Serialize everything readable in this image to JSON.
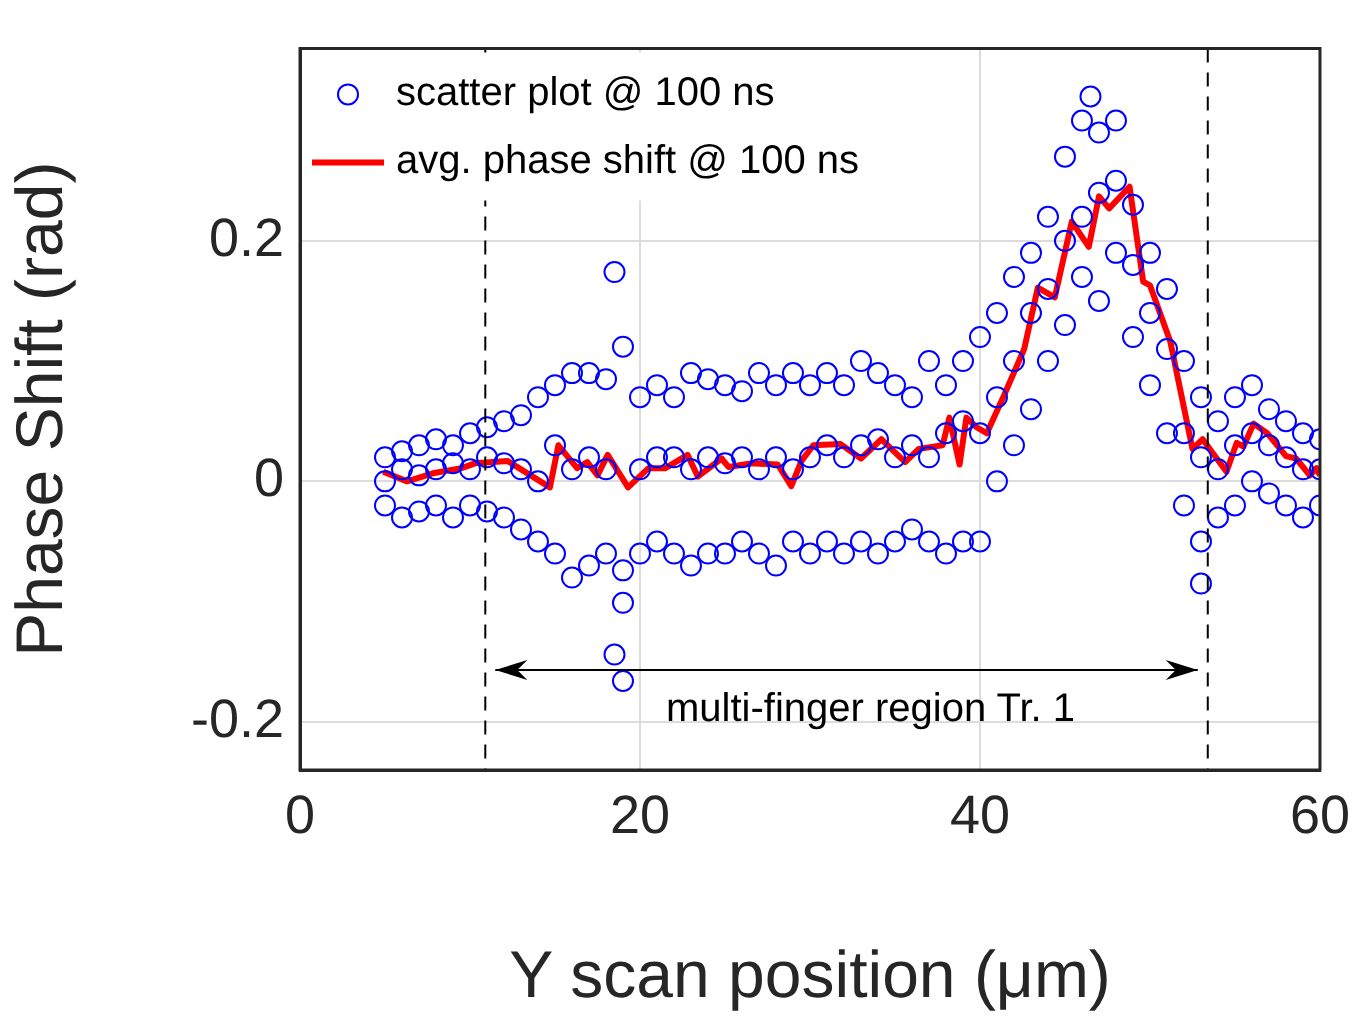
{
  "chart_data": {
    "type": "scatter",
    "xlabel": "Y scan position (μm)",
    "ylabel": "Phase Shift (rad)",
    "xlim": [
      0,
      60
    ],
    "xticks": [
      0,
      20,
      40,
      60
    ],
    "ylim": [
      -0.24,
      0.36
    ],
    "yticks": [
      -0.2,
      0,
      0.2
    ],
    "grid": true,
    "legend": "top left",
    "ref_lines": [
      {
        "axis": "x",
        "value": 10.9,
        "color": "#000000",
        "line_style": "dashed"
      },
      {
        "axis": "x",
        "value": 53.4,
        "color": "#000000",
        "line_style": "dashed"
      }
    ],
    "annotations": [
      "multi-finger region Tr. 1"
    ],
    "series": [
      {
        "name": "scatter plot @ 100 ns",
        "marker": "circle",
        "color": "#0000ff",
        "x": [
          5,
          5,
          5,
          6,
          6,
          6,
          7,
          7,
          7,
          8,
          8,
          8,
          9,
          9,
          9,
          10,
          10,
          10,
          11,
          11,
          11,
          12,
          12,
          12,
          13,
          13,
          13,
          14,
          14,
          14,
          15,
          15,
          15,
          16,
          16,
          16,
          17,
          17,
          17,
          18,
          18,
          18,
          18.5,
          19,
          19,
          19,
          19,
          18.5,
          20,
          20,
          20,
          21,
          21,
          21,
          22,
          22,
          22,
          23,
          23,
          23,
          24,
          24,
          24,
          25,
          25,
          25,
          26,
          26,
          26,
          27,
          27,
          27,
          28,
          28,
          28,
          29,
          29,
          29,
          30,
          30,
          30,
          31,
          31,
          31,
          32,
          32,
          32,
          33,
          33,
          33,
          34,
          34,
          34,
          35,
          35,
          35,
          36,
          36,
          36,
          37,
          37,
          37,
          38,
          38,
          38,
          39,
          39,
          39,
          40,
          40,
          40,
          41,
          41,
          41,
          42,
          42,
          42,
          43,
          43,
          43,
          44,
          44,
          44,
          45,
          45,
          45,
          46,
          46,
          46,
          46.5,
          47,
          47,
          47,
          48,
          48,
          48,
          49,
          49,
          49,
          50,
          50,
          50,
          51,
          51,
          51,
          52,
          52,
          52,
          53,
          53,
          53,
          53,
          54,
          54,
          54,
          55,
          55,
          55,
          56,
          56,
          56,
          57,
          57,
          57,
          58,
          58,
          58,
          59,
          59,
          59,
          60,
          60,
          60
        ],
        "values": [
          0.02,
          -0.02,
          0,
          0.025,
          -0.03,
          0.01,
          0.03,
          -0.025,
          0.005,
          0.035,
          -0.02,
          0.01,
          0.03,
          -0.03,
          0.015,
          0.04,
          -0.02,
          0.01,
          0.045,
          -0.025,
          0.02,
          0.05,
          -0.03,
          0.015,
          0.055,
          -0.04,
          0.01,
          0.07,
          -0.05,
          0,
          0.08,
          -0.06,
          0.03,
          0.09,
          -0.08,
          0.01,
          0.09,
          -0.07,
          0.02,
          0.085,
          -0.06,
          0.01,
          0.174,
          0.112,
          -0.074,
          -0.101,
          -0.166,
          -0.144,
          0.07,
          -0.06,
          0.01,
          0.08,
          -0.05,
          0.02,
          0.07,
          -0.06,
          0.02,
          0.09,
          -0.07,
          0.01,
          0.085,
          -0.06,
          0.02,
          0.08,
          -0.06,
          0.015,
          0.075,
          -0.05,
          0.02,
          0.09,
          -0.06,
          0.01,
          0.08,
          -0.07,
          0.02,
          0.09,
          -0.05,
          0.01,
          0.08,
          -0.06,
          0.02,
          0.09,
          -0.05,
          0.03,
          0.08,
          -0.06,
          0.02,
          0.1,
          -0.05,
          0.03,
          0.09,
          -0.06,
          0.035,
          0.08,
          -0.05,
          0.02,
          0.07,
          -0.04,
          0.03,
          0.1,
          -0.05,
          0.02,
          0.08,
          -0.06,
          0.04,
          0.1,
          -0.05,
          0.05,
          0.12,
          -0.05,
          0.04,
          0.14,
          0,
          0.07,
          0.17,
          0.03,
          0.1,
          0.19,
          0.06,
          0.14,
          0.22,
          0.1,
          0.16,
          0.27,
          0.13,
          0.2,
          0.3,
          0.17,
          0.22,
          0.32,
          0.29,
          0.15,
          0.24,
          0.3,
          0.19,
          0.25,
          0.23,
          0.12,
          0.18,
          0.19,
          0.08,
          0.14,
          0.16,
          0.04,
          0.11,
          0.1,
          -0.02,
          0.04,
          0.07,
          -0.05,
          0.02,
          -0.085,
          0.05,
          -0.03,
          0.01,
          0.07,
          -0.02,
          0.03,
          0.08,
          0,
          0.04,
          0.06,
          -0.01,
          0.03,
          0.05,
          -0.02,
          0.02,
          0.04,
          -0.03,
          0.01,
          0.035,
          -0.02,
          0.01
        ]
      },
      {
        "name": "avg. phase shift @ 100 ns",
        "type": "line",
        "marker": "none",
        "line_style": "solid",
        "color": "#ff0000",
        "x": [
          4.9,
          6.3,
          7.9,
          9.5,
          10.3,
          12.2,
          14.7,
          15.2,
          16.3,
          16.9,
          17.5,
          18.1,
          19.3,
          20.5,
          21.5,
          22.8,
          23.4,
          24.8,
          25.2,
          26.6,
          28.1,
          28.9,
          29.5,
          30.2,
          31.8,
          33,
          34.2,
          35.6,
          36.4,
          37.8,
          38.2,
          38.8,
          39.2,
          39.8,
          40.4,
          41.4,
          42.6,
          43.4,
          44.4,
          45.4,
          46.4,
          47,
          47.6,
          48.8,
          49.6,
          50,
          51.2,
          52.5,
          53.1,
          54.5,
          55.1,
          55.5,
          56.1,
          56.9,
          58,
          58.6,
          59.4,
          59.8,
          60
        ],
        "values": [
          0.008,
          0,
          0.007,
          0.011,
          0.015,
          0.017,
          -0.005,
          0.03,
          0.011,
          0.016,
          0.005,
          0.022,
          -0.005,
          0.011,
          0.011,
          0.022,
          0.004,
          0.019,
          0.012,
          0.015,
          0.014,
          -0.004,
          0.017,
          0.03,
          0.031,
          0.019,
          0.035,
          0.016,
          0.027,
          0.03,
          0.053,
          0.014,
          0.053,
          0.045,
          0.04,
          0.071,
          0.11,
          0.161,
          0.153,
          0.216,
          0.195,
          0.237,
          0.227,
          0.245,
          0.166,
          0.163,
          0.116,
          0.027,
          0.035,
          0.008,
          0.032,
          0.029,
          0.048,
          0.04,
          0.021,
          0.019,
          0.005,
          0.011,
          0.005
        ]
      }
    ]
  }
}
